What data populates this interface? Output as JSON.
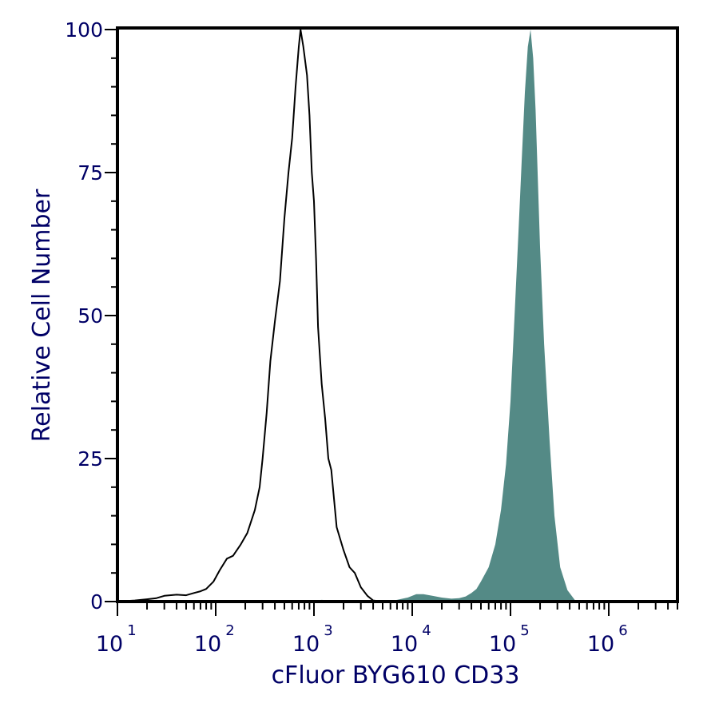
{
  "chart_data": {
    "type": "area",
    "title": "",
    "xlabel": "cFluor BYG610 CD33",
    "ylabel": "Relative Cell Number",
    "x_scale": "log",
    "xlim": [
      10,
      5000000
    ],
    "ylim": [
      0,
      100
    ],
    "grid": false,
    "colors": {
      "axis": "#000000",
      "text": "#000066",
      "control_line": "#000000",
      "stained_fill": "#548a86"
    },
    "x_ticks": [
      {
        "base": "10",
        "exp": "1",
        "value": 10
      },
      {
        "base": "10",
        "exp": "2",
        "value": 100
      },
      {
        "base": "10",
        "exp": "3",
        "value": 1000
      },
      {
        "base": "10",
        "exp": "4",
        "value": 10000
      },
      {
        "base": "10",
        "exp": "5",
        "value": 100000
      },
      {
        "base": "10",
        "exp": "6",
        "value": 1000000
      }
    ],
    "y_ticks": [
      {
        "label": "0",
        "value": 0
      },
      {
        "label": "25",
        "value": 25
      },
      {
        "label": "50",
        "value": 50
      },
      {
        "label": "75",
        "value": 75
      },
      {
        "label": "100",
        "value": 100
      }
    ],
    "series": [
      {
        "style": "line",
        "points": [
          [
            10,
            0
          ],
          [
            15,
            0.2
          ],
          [
            20,
            0.4
          ],
          [
            25,
            0.6
          ],
          [
            30,
            1.0
          ],
          [
            40,
            1.2
          ],
          [
            50,
            1.1
          ],
          [
            60,
            1.5
          ],
          [
            70,
            1.8
          ],
          [
            80,
            2.2
          ],
          [
            95,
            3.5
          ],
          [
            110,
            5.5
          ],
          [
            130,
            7.5
          ],
          [
            150,
            8.0
          ],
          [
            180,
            10
          ],
          [
            210,
            12
          ],
          [
            250,
            16
          ],
          [
            280,
            20
          ],
          [
            300,
            25
          ],
          [
            330,
            33
          ],
          [
            360,
            42
          ],
          [
            400,
            49
          ],
          [
            450,
            56
          ],
          [
            500,
            67
          ],
          [
            550,
            75
          ],
          [
            600,
            81
          ],
          [
            650,
            90
          ],
          [
            700,
            97
          ],
          [
            730,
            100
          ],
          [
            780,
            97
          ],
          [
            850,
            92
          ],
          [
            900,
            85
          ],
          [
            950,
            75
          ],
          [
            1000,
            70
          ],
          [
            1050,
            60
          ],
          [
            1100,
            48
          ],
          [
            1200,
            38
          ],
          [
            1300,
            32
          ],
          [
            1400,
            25
          ],
          [
            1500,
            23
          ],
          [
            1700,
            13
          ],
          [
            2000,
            9
          ],
          [
            2300,
            6
          ],
          [
            2600,
            5
          ],
          [
            3000,
            2.5
          ],
          [
            3500,
            1
          ],
          [
            4000,
            0.2
          ],
          [
            5000,
            0
          ]
        ]
      },
      {
        "style": "filled",
        "points": [
          [
            900,
            0
          ],
          [
            1000,
            0.2
          ],
          [
            1200,
            0.3
          ],
          [
            1500,
            0.2
          ],
          [
            2000,
            0
          ],
          [
            5000,
            0
          ],
          [
            7000,
            0.3
          ],
          [
            9000,
            0.7
          ],
          [
            11000,
            1.3
          ],
          [
            13000,
            1.3
          ],
          [
            16000,
            1.0
          ],
          [
            20000,
            0.7
          ],
          [
            25000,
            0.5
          ],
          [
            30000,
            0.6
          ],
          [
            35000,
            0.9
          ],
          [
            40000,
            1.5
          ],
          [
            45000,
            2.2
          ],
          [
            50000,
            3.5
          ],
          [
            60000,
            6
          ],
          [
            70000,
            10
          ],
          [
            80000,
            16
          ],
          [
            90000,
            24
          ],
          [
            100000,
            35
          ],
          [
            110000,
            50
          ],
          [
            120000,
            64
          ],
          [
            130000,
            77
          ],
          [
            140000,
            89
          ],
          [
            150000,
            97
          ],
          [
            160000,
            100
          ],
          [
            170000,
            95
          ],
          [
            180000,
            86
          ],
          [
            200000,
            62
          ],
          [
            220000,
            45
          ],
          [
            250000,
            28
          ],
          [
            280000,
            15
          ],
          [
            320000,
            6
          ],
          [
            380000,
            2
          ],
          [
            450000,
            0.3
          ],
          [
            500000,
            0
          ]
        ]
      }
    ]
  }
}
